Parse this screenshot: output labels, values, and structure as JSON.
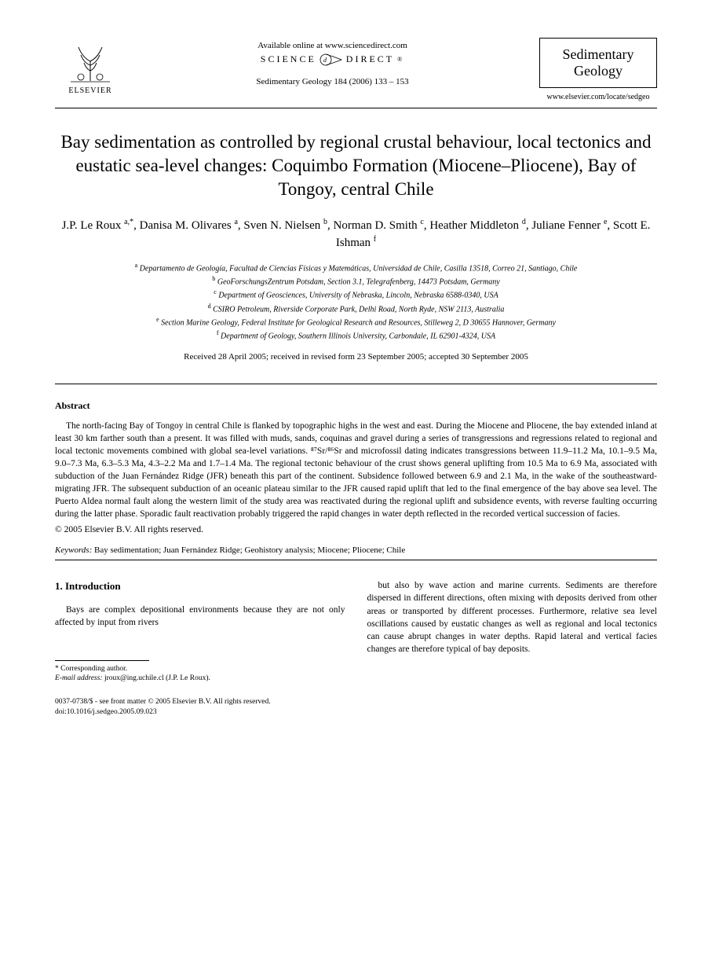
{
  "header": {
    "available_online": "Available online at www.sciencedirect.com",
    "science_direct": "SCIENCE",
    "science_direct2": "DIRECT",
    "journal_ref": "Sedimentary Geology 184 (2006) 133 – 153",
    "elsevier_label": "ELSEVIER",
    "journal_box_line1": "Sedimentary",
    "journal_box_line2": "Geology",
    "journal_url": "www.elsevier.com/locate/sedgeo"
  },
  "title": "Bay sedimentation as controlled by regional crustal behaviour, local tectonics and eustatic sea-level changes: Coquimbo Formation (Miocene–Pliocene), Bay of Tongoy, central Chile",
  "authors_html": "J.P. Le Roux <sup>a,*</sup>, Danisa M. Olivares <sup>a</sup>, Sven N. Nielsen <sup>b</sup>, Norman D. Smith <sup>c</sup>, Heather Middleton <sup>d</sup>, Juliane Fenner <sup>e</sup>, Scott E. Ishman <sup>f</sup>",
  "affiliations": [
    {
      "sup": "a",
      "text": "Departamento de Geología, Facultad de Ciencias Físicas y Matemáticas, Universidad de Chile, Casilla 13518, Correo 21, Santiago, Chile"
    },
    {
      "sup": "b",
      "text": "GeoForschungsZentrum Potsdam, Section 3.1, Telegrafenberg, 14473 Potsdam, Germany"
    },
    {
      "sup": "c",
      "text": "Department of Geosciences, University of Nebraska, Lincoln, Nebraska 6588-0340, USA"
    },
    {
      "sup": "d",
      "text": "CSIRO Petroleum, Riverside Corporate Park, Delhi Road, North Ryde, NSW 2113, Australia"
    },
    {
      "sup": "e",
      "text": "Section Marine Geology, Federal Institute for Geological Research and Resources, Stilleweg 2, D 30655 Hannover, Germany"
    },
    {
      "sup": "f",
      "text": "Department of Geology, Southern Illinois University, Carbondale, IL 62901-4324, USA"
    }
  ],
  "dates": "Received 28 April 2005; received in revised form 23 September 2005; accepted 30 September 2005",
  "abstract_label": "Abstract",
  "abstract_text": "The north-facing Bay of Tongoy in central Chile is flanked by topographic highs in the west and east. During the Miocene and Pliocene, the bay extended inland at least 30 km farther south than a present. It was filled with muds, sands, coquinas and gravel during a series of transgressions and regressions related to regional and local tectonic movements combined with global sea-level variations. ⁸⁷Sr/⁸⁶Sr and microfossil dating indicates transgressions between 11.9–11.2 Ma, 10.1–9.5 Ma, 9.0–7.3 Ma, 6.3–5.3 Ma, 4.3–2.2 Ma and 1.7–1.4 Ma. The regional tectonic behaviour of the crust shows general uplifting from 10.5 Ma to 6.9 Ma, associated with subduction of the Juan Fernández Ridge (JFR) beneath this part of the continent. Subsidence followed between 6.9 and 2.1 Ma, in the wake of the southeastward-migrating JFR. The subsequent subduction of an oceanic plateau similar to the JFR caused rapid uplift that led to the final emergence of the bay above sea level. The Puerto Aldea normal fault along the western limit of the study area was reactivated during the regional uplift and subsidence events, with reverse faulting occurring during the latter phase. Sporadic fault reactivation probably triggered the rapid changes in water depth reflected in the recorded vertical succession of facies.",
  "copyright": "© 2005 Elsevier B.V. All rights reserved.",
  "keywords_label": "Keywords:",
  "keywords_text": "Bay sedimentation; Juan Fernández Ridge; Geohistory analysis; Miocene; Pliocene; Chile",
  "intro_heading": "1. Introduction",
  "intro_col1": "Bays are complex depositional environments because they are not only affected by input from rivers",
  "intro_col2": "but also by wave action and marine currents. Sediments are therefore dispersed in different directions, often mixing with deposits derived from other areas or transported by different processes. Furthermore, relative sea level oscillations caused by eustatic changes as well as regional and local tectonics can cause abrupt changes in water depths. Rapid lateral and vertical facies changes are therefore typical of bay deposits.",
  "footnote": {
    "corresponding": "* Corresponding author.",
    "email_label": "E-mail address:",
    "email": "jroux@ing.uchile.cl (J.P. Le Roux)."
  },
  "bottom": {
    "left_line1": "0037-0738/$ - see front matter © 2005 Elsevier B.V. All rights reserved.",
    "left_line2": "doi:10.1016/j.sedgeo.2005.09.023"
  }
}
